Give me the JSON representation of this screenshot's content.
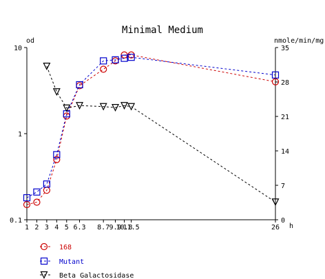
{
  "chart_data": {
    "type": "line",
    "title": "Minimal Medium",
    "left_axis": {
      "unit_label": "od",
      "scale": "log",
      "range": [
        0.1,
        10
      ],
      "ticks": [
        {
          "value": 0.1,
          "label": "0.1"
        },
        {
          "value": 1,
          "label": "1"
        },
        {
          "value": 10,
          "label": "10"
        }
      ]
    },
    "right_axis": {
      "unit_label": "nmole/min/mg",
      "scale": "linear",
      "range": [
        0,
        35
      ],
      "ticks": [
        {
          "value": 0,
          "label": "0"
        },
        {
          "value": 7,
          "label": "7"
        },
        {
          "value": 14,
          "label": "14"
        },
        {
          "value": 21,
          "label": "21"
        },
        {
          "value": 28,
          "label": "28"
        },
        {
          "value": 35,
          "label": "35"
        }
      ]
    },
    "x_axis": {
      "unit_label": "h",
      "range": [
        1,
        26
      ],
      "ticks": [
        {
          "value": 1,
          "label": "1"
        },
        {
          "value": 2,
          "label": "2"
        },
        {
          "value": 3,
          "label": "3"
        },
        {
          "value": 4,
          "label": "4"
        },
        {
          "value": 5,
          "label": "5"
        },
        {
          "value": 6.3,
          "label": "6.3"
        },
        {
          "value": 8.7,
          "label": "8.7"
        },
        {
          "value": 9.9,
          "label": "9.9"
        },
        {
          "value": 10.8,
          "label": "10.8"
        },
        {
          "value": 11.5,
          "label": "11.5"
        },
        {
          "value": 26,
          "label": "26"
        }
      ]
    },
    "series": [
      {
        "name": "168",
        "axis": "left",
        "color": "#cc0000",
        "marker": "circle",
        "x": [
          1,
          2,
          3,
          4,
          5,
          6.3,
          8.7,
          9.9,
          10.8,
          11.5,
          26
        ],
        "y": [
          0.15,
          0.16,
          0.22,
          0.5,
          1.6,
          3.6,
          5.6,
          7.0,
          8.2,
          8.2,
          4.0
        ]
      },
      {
        "name": "Mutant",
        "axis": "left",
        "color": "#0000cc",
        "marker": "square",
        "x": [
          1,
          2,
          3,
          4,
          5,
          6.3,
          8.7,
          9.9,
          10.8,
          11.5,
          26
        ],
        "y": [
          0.18,
          0.21,
          0.26,
          0.57,
          1.7,
          3.7,
          7.0,
          7.2,
          7.5,
          7.7,
          4.8
        ]
      },
      {
        "name": "Beta Galactosidase",
        "axis": "right",
        "color": "#000000",
        "marker": "triangle-down",
        "x": [
          3,
          4,
          5,
          6.3,
          8.7,
          9.9,
          10.8,
          11.5,
          26
        ],
        "y": [
          31.2,
          26.0,
          22.7,
          23.2,
          23.0,
          22.8,
          23.2,
          23.0,
          3.6
        ]
      }
    ],
    "grid": false,
    "legend": "bottom-left"
  }
}
